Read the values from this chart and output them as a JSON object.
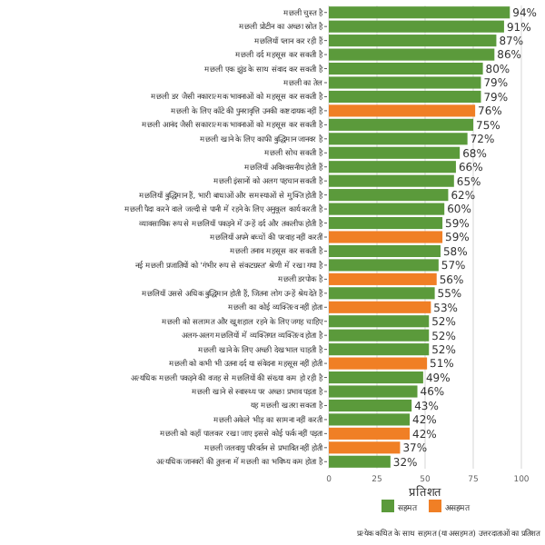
{
  "chart_data": {
    "type": "bar",
    "orientation": "horizontal",
    "xlabel": "प्रतिशत",
    "categories": [
      "मछली चुस्त है",
      "मछली प्रोटीन का अच्छा स्रोत है",
      "मछलियाँ प्लान कर रही हैं",
      "मछली दर्द महसूस कर सकती है",
      "मछली एक झुंड के साथ संवाद कर सकती है",
      "मछली का तेल",
      "मछली डर जैसी नकारात्मक भावनाओं को महसूस कर सकती है",
      "मछली के लिए काँटे की पुनरावृत्ति उनकी कष्टदायक नहीं है",
      "मछली आनंद जैसी सकारात्मक भावनाओं को महसूस कर सकती है",
      "मछली खाने के लिए काफी बुद्धिमान जानवर है",
      "मछली सोच सकती है",
      "मछलियाँ अविश्वसनीय होती हैं",
      "मछली इंसानों को अलग पहचान सकती है",
      "मछलियाँ बुद्धिमान हैं, भारी बाधाओं और समस्याओं से मुक्ति होती है",
      "मछली पैदा करने वाले जल्दी से पानी में रहने के लिए अनुकूल कार्य करती है",
      "व्यावसायिक रूप से मछलियाँ पकड़ने में उन्हें दर्द और तकलीफ होती है",
      "मछलियाँ अपने बच्चों की परवाह नहीं करतीं",
      "मछली तनाव महसूस कर सकती है",
      "नई मछली प्रजातियों को 'गंभीर रूप से संकटग्रस्त' श्रेणी में रखा गया है",
      "मछली डरपोक है",
      "मछलियाँ उससे अधिक बुद्धिमान होती हैं, जितना लोग उन्हें श्रेय देते हैं",
      "मछली का कोई व्यक्तित्व नहीं होता",
      "मछली को सलामत और खुशहाल रहने के लिए जगह चाहिए",
      "अलग-अलग मछलियों में व्यक्तिगत व्यक्तित्व होता है",
      "मछली खाने के लिए अच्छी देखभाल चाहती है",
      "मछली को कभी भी उतना दर्द या संवेदना महसूस नहीं होती",
      "अत्यधिक मछली पकड़ने की वजह से मछलियों की संख्या कम हो रही है",
      "मछली खाने से स्वास्थ्य पर अच्छा प्रभाव पड़ता है",
      "यह मछली खतरा सकता है",
      "मछली अकेले भीड़ का सामना नहीं करती",
      "मछली को कहाँ पालकर रखा जाए इससे कोई फर्क नहीं पड़ता",
      "मछली जलवायु परिवर्तन से प्रभावित नहीं होती",
      "अत्यधिक जानवरों की तुलना में मछली का भविष्य कम होता है"
    ],
    "series": [
      {
        "name": "सहमत",
        "color": "#5b9a3b",
        "values": [
          94,
          91,
          87,
          86,
          80,
          79,
          79,
          null,
          75,
          72,
          68,
          66,
          65,
          62,
          60,
          59,
          null,
          58,
          57,
          null,
          55,
          null,
          52,
          52,
          52,
          null,
          49,
          46,
          43,
          42,
          null,
          null,
          32
        ]
      },
      {
        "name": "असहमत",
        "color": "#f07f25",
        "values": [
          null,
          null,
          null,
          null,
          null,
          null,
          null,
          76,
          null,
          null,
          null,
          null,
          null,
          null,
          null,
          null,
          59,
          null,
          null,
          56,
          null,
          53,
          null,
          null,
          null,
          51,
          null,
          null,
          null,
          null,
          42,
          37,
          null
        ]
      }
    ],
    "xlim": [
      0,
      100
    ],
    "xticks": [
      0,
      25,
      50,
      75,
      100
    ],
    "grid": "x",
    "legend": "bottom",
    "annotations": [
      "प्रत्येक कथित के साथ सहमत (या असहमत) उत्तरदाताओं का प्रतिशत"
    ],
    "value_labels": [
      "94%",
      "91%",
      "87%",
      "86%",
      "80%",
      "79%",
      "79%",
      "76%",
      "75%",
      "72%",
      "68%",
      "66%",
      "65%",
      "62%",
      "60%",
      "59%",
      "59%",
      "58%",
      "57%",
      "56%",
      "55%",
      "53%",
      "52%",
      "52%",
      "52%",
      "51%",
      "49%",
      "46%",
      "43%",
      "42%",
      "42%",
      "37%",
      "32%"
    ]
  }
}
